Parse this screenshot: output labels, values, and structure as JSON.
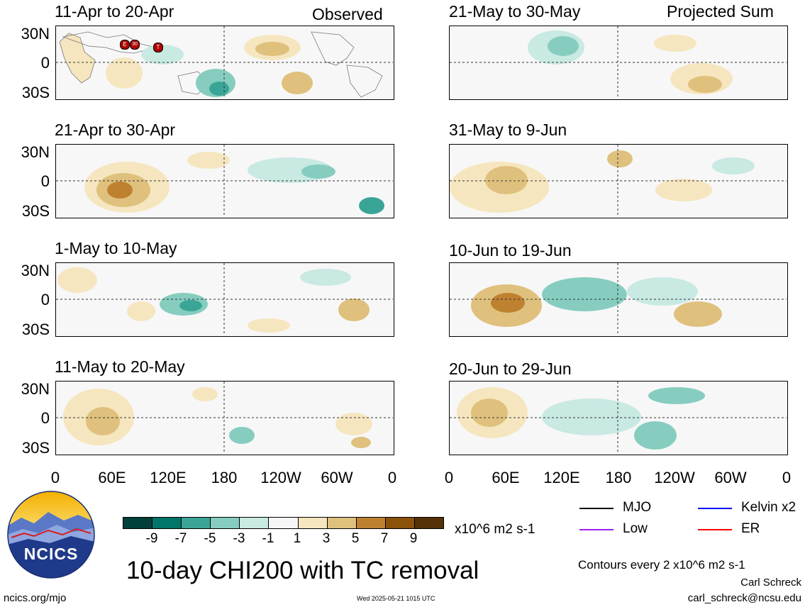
{
  "headers": {
    "left": "Observed",
    "right": "Projected Sum"
  },
  "panels_left": [
    {
      "title": "11-Apr to 20-Apr"
    },
    {
      "title": "21-Apr to 30-Apr"
    },
    {
      "title": "1-May to 10-May"
    },
    {
      "title": "11-May to 20-May"
    }
  ],
  "panels_right": [
    {
      "title": "21-May to 30-May"
    },
    {
      "title": "31-May to 9-Jun"
    },
    {
      "title": "10-Jun to 19-Jun"
    },
    {
      "title": "20-Jun to 29-Jun"
    }
  ],
  "lat_labels": [
    "30N",
    "0",
    "30S"
  ],
  "lon_labels": [
    "0",
    "60E",
    "120E",
    "180",
    "120W",
    "60W",
    "0"
  ],
  "tc_markers": [
    "E",
    "30",
    "T"
  ],
  "colorbar": {
    "colors": [
      "#01403a",
      "#02756a",
      "#3aa597",
      "#86cdc0",
      "#c9e9e3",
      "#f5f5f5",
      "#f6e6bf",
      "#dfc17d",
      "#be8130",
      "#8b520a",
      "#553107"
    ],
    "labels": [
      "-9",
      "-7",
      "-5",
      "-3",
      "-1",
      "1",
      "3",
      "5",
      "7",
      "9"
    ],
    "units": "x10^6 m2 s-1"
  },
  "legend": [
    {
      "label": "MJO",
      "color": "#000000"
    },
    {
      "label": "Kelvin x2",
      "color": "#0000ff"
    },
    {
      "label": "Low",
      "color": "#a020f0"
    },
    {
      "label": "ER",
      "color": "#ff0000"
    }
  ],
  "logo_text": "NCICS",
  "main_title": "10-day CHI200 with TC removal",
  "contours_note": "Contours every 2 x10^6 m2 s-1",
  "author": "Carl Schreck",
  "email": "carl_schreck@ncsu.edu",
  "site": "ncics.org/mjo",
  "timestamp": "Wed 2025-05-21 1015 UTC"
}
